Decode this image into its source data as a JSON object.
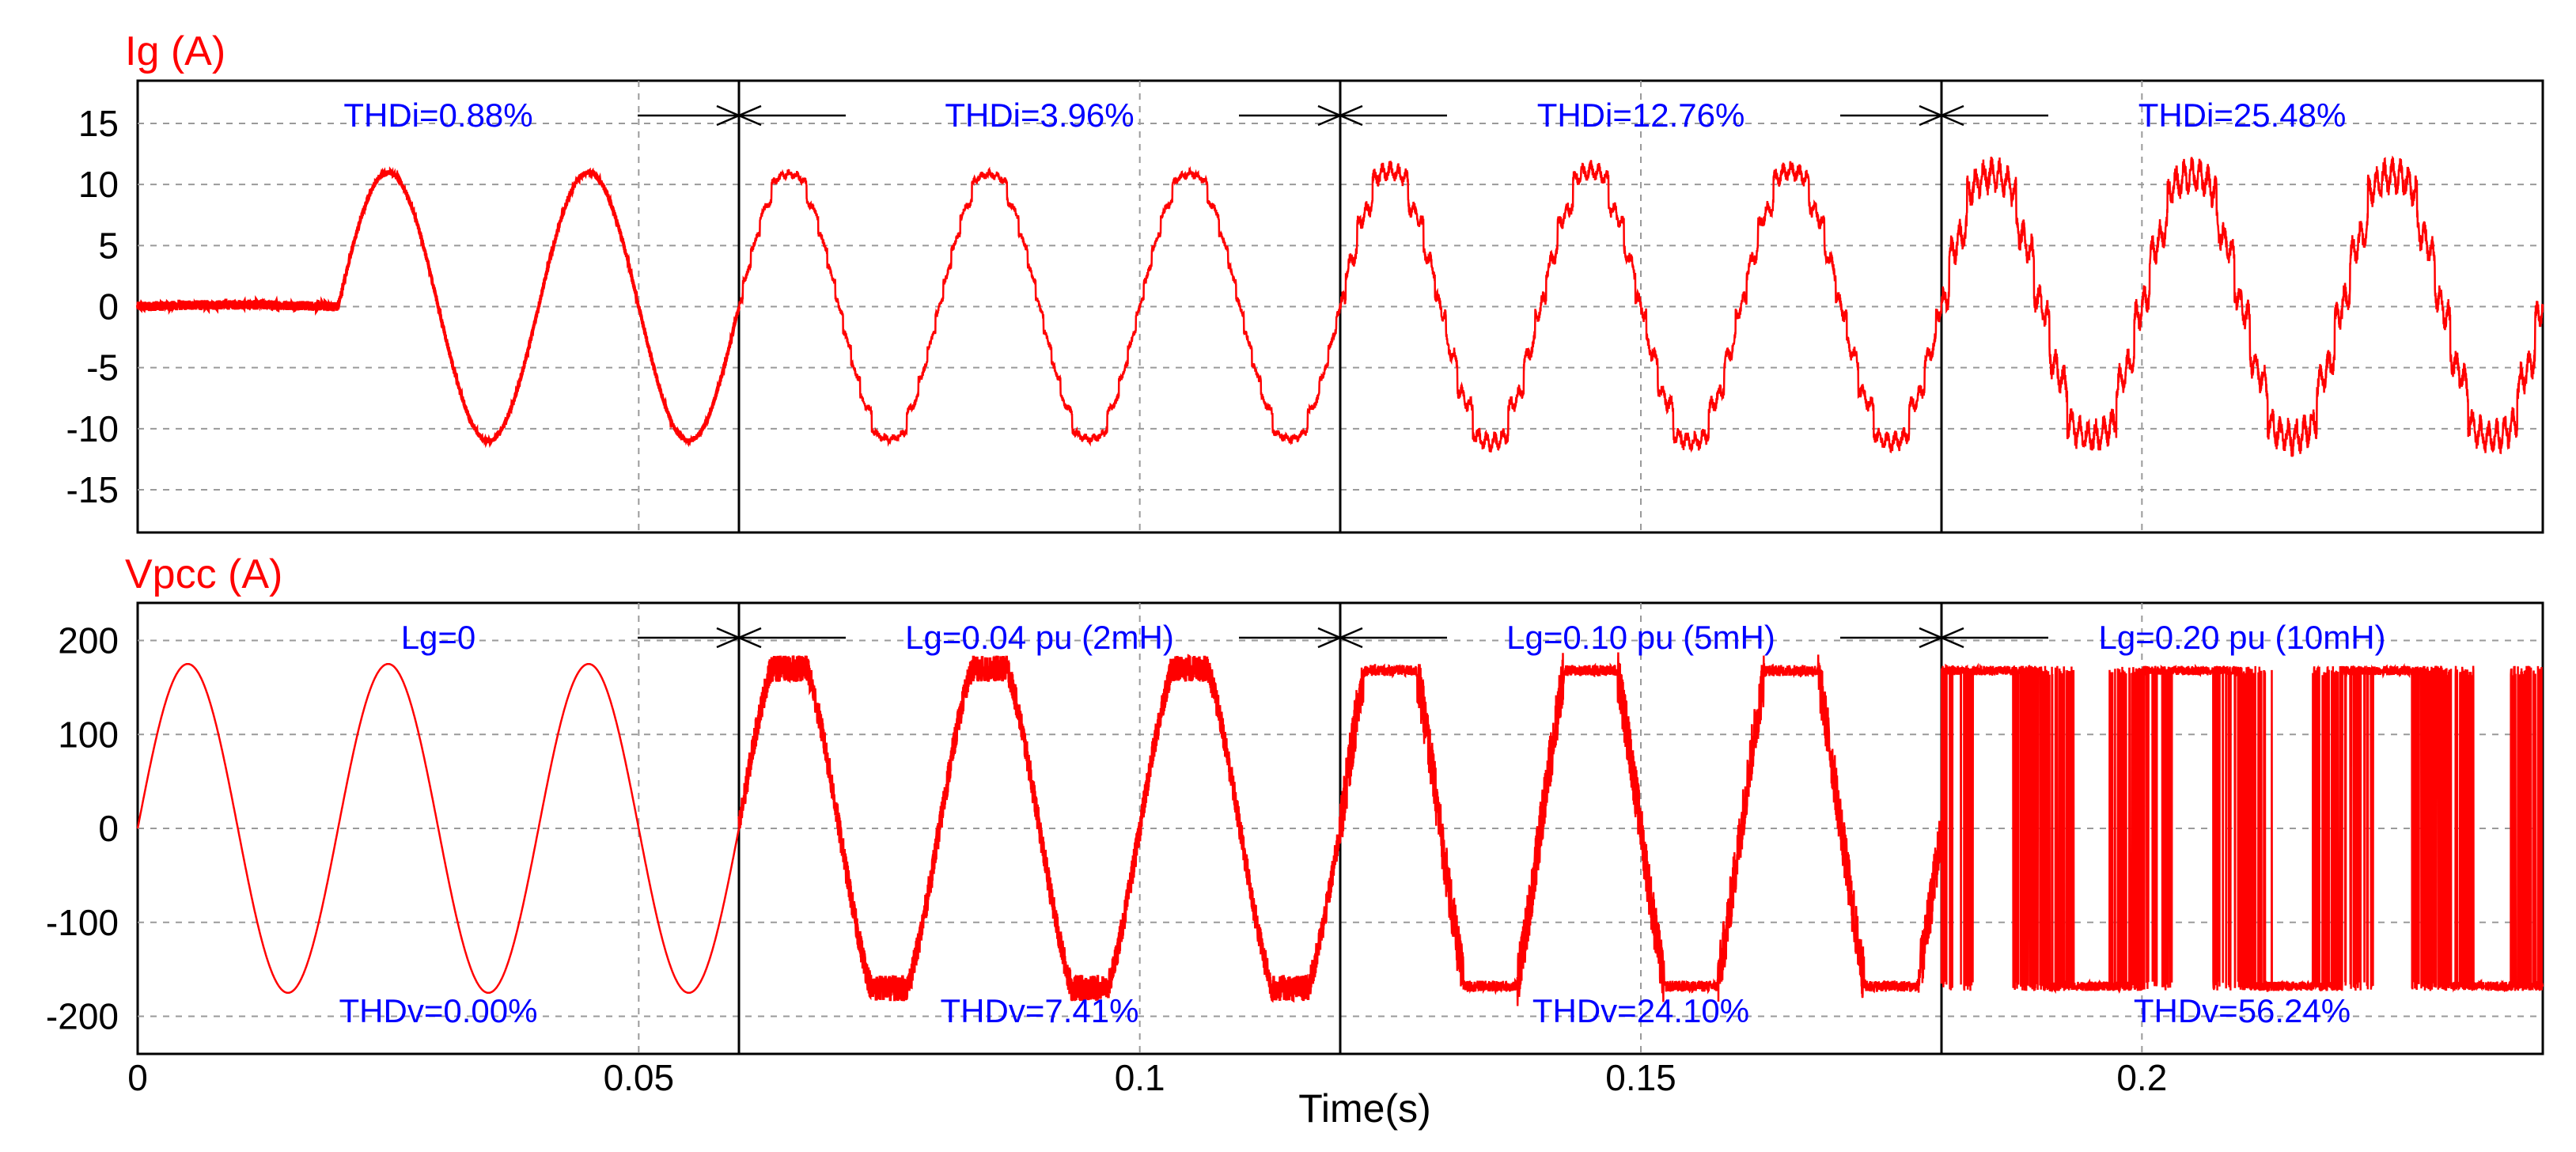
{
  "colors": {
    "trace": "#ff0000",
    "annotation": "#0000ff",
    "grid": "#9a9a9a",
    "axis": "#000000",
    "label": "#ff0000"
  },
  "chart_data": [
    {
      "type": "line",
      "title": "",
      "ylabel": "Ig (A)",
      "xlabel": "Time(s)",
      "xlim": [
        0,
        0.24
      ],
      "ylim": [
        -18.5,
        18.5
      ],
      "yticks": [
        15,
        10,
        5,
        0,
        -5,
        -10,
        -15
      ],
      "ytick_labels": [
        "15",
        "10",
        "5",
        "0",
        "-5",
        "-10",
        "-15"
      ],
      "grid_x": [
        0.05,
        0.1,
        0.15,
        0.2
      ],
      "grid": true,
      "segment_boundaries": [
        0.06,
        0.12,
        0.18
      ],
      "series": [
        {
          "name": "Ig",
          "frequency_hz": 50,
          "amplitude_a": 11,
          "startup_time_s": 0.02,
          "segments": [
            {
              "t_start": 0.0,
              "t_end": 0.06,
              "thd_percent": 0.88
            },
            {
              "t_start": 0.06,
              "t_end": 0.12,
              "thd_percent": 3.96
            },
            {
              "t_start": 0.12,
              "t_end": 0.18,
              "thd_percent": 12.76
            },
            {
              "t_start": 0.18,
              "t_end": 0.24,
              "thd_percent": 25.48
            }
          ]
        }
      ],
      "annotations": [
        {
          "text": "THDi=0.88%",
          "x": 0.03
        },
        {
          "text": "THDi=3.96%",
          "x": 0.09
        },
        {
          "text": "THDi=12.76%",
          "x": 0.15
        },
        {
          "text": "THDi=25.48%",
          "x": 0.21
        }
      ]
    },
    {
      "type": "line",
      "title": "",
      "ylabel": "Vpcc (A)",
      "xlabel": "Time(s)",
      "xlim": [
        0,
        0.24
      ],
      "ylim": [
        -240,
        240
      ],
      "yticks": [
        200,
        100,
        0,
        -100,
        -200
      ],
      "ytick_labels": [
        "200",
        "100",
        "0",
        "-100",
        "-200"
      ],
      "grid_x": [
        0.05,
        0.1,
        0.15,
        0.2
      ],
      "grid": true,
      "segment_boundaries": [
        0.06,
        0.12,
        0.18
      ],
      "series": [
        {
          "name": "Vpcc",
          "frequency_hz": 50,
          "amplitude": 175,
          "segments": [
            {
              "t_start": 0.0,
              "t_end": 0.06,
              "clip_level": 175
            },
            {
              "t_start": 0.06,
              "t_end": 0.12,
              "clip_level": 170
            },
            {
              "t_start": 0.12,
              "t_end": 0.18,
              "clip_level": 168
            },
            {
              "t_start": 0.18,
              "t_end": 0.24,
              "clip_level": 168
            }
          ]
        }
      ],
      "annotations_top": [
        {
          "text": "Lg=0",
          "x": 0.03
        },
        {
          "text": "Lg=0.04 pu (2mH)",
          "x": 0.09
        },
        {
          "text": "Lg=0.10 pu (5mH)",
          "x": 0.15
        },
        {
          "text": "Lg=0.20 pu (10mH)",
          "x": 0.21
        }
      ],
      "annotations_bottom": [
        {
          "text": "THDv=0.00%",
          "x": 0.03
        },
        {
          "text": "THDv=7.41%",
          "x": 0.09
        },
        {
          "text": "THDv=24.10%",
          "x": 0.15
        },
        {
          "text": "THDv=56.24%",
          "x": 0.21
        }
      ]
    }
  ],
  "x_axis": {
    "ticks": [
      0,
      0.05,
      0.1,
      0.15,
      0.2
    ],
    "tick_labels": [
      "0",
      "0.05",
      "0.1",
      "0.15",
      "0.2"
    ],
    "title": "Time(s)"
  }
}
